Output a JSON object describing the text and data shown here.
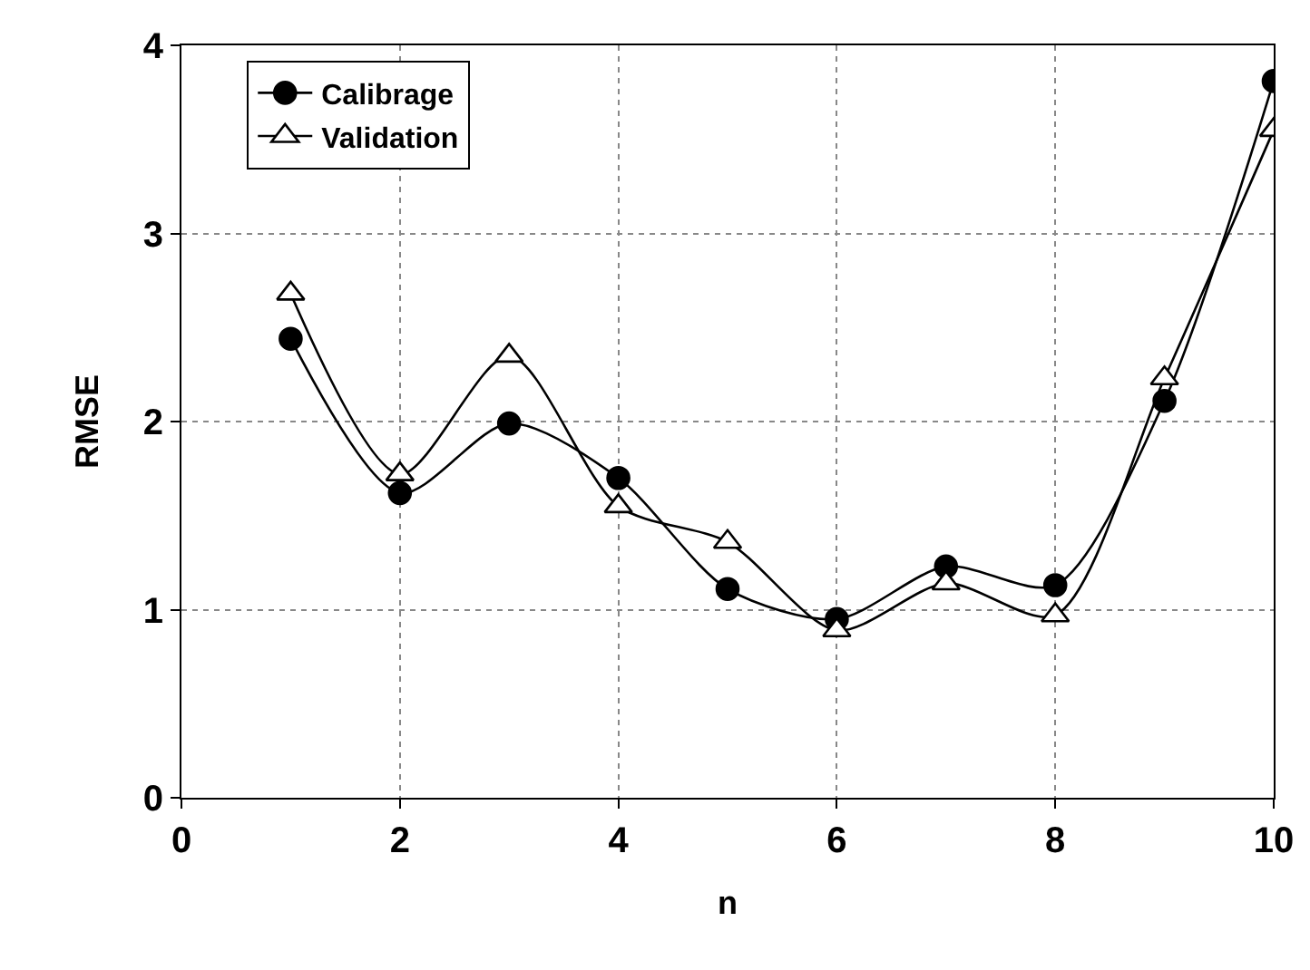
{
  "chart_data": {
    "type": "line",
    "xlabel": "n",
    "ylabel": "RMSE",
    "x": [
      1,
      2,
      3,
      4,
      5,
      6,
      7,
      8,
      9,
      10
    ],
    "series": [
      {
        "name": "Calibrage",
        "color": "#000000",
        "marker": "circle",
        "values": [
          2.44,
          1.62,
          1.99,
          1.7,
          1.11,
          0.95,
          1.23,
          1.13,
          2.11,
          3.81
        ]
      },
      {
        "name": "Validation",
        "color": "#000000",
        "marker": "triangle",
        "values": [
          2.68,
          1.72,
          2.35,
          1.55,
          1.36,
          0.89,
          1.14,
          0.97,
          2.23,
          3.55
        ]
      }
    ],
    "xlim": [
      0,
      10
    ],
    "xticks": [
      0,
      2,
      4,
      6,
      8,
      10
    ],
    "ylim": [
      0,
      4
    ],
    "yticks": [
      0,
      1,
      2,
      3,
      4
    ],
    "grid": true,
    "legend": "top left",
    "line_style": "solid"
  }
}
